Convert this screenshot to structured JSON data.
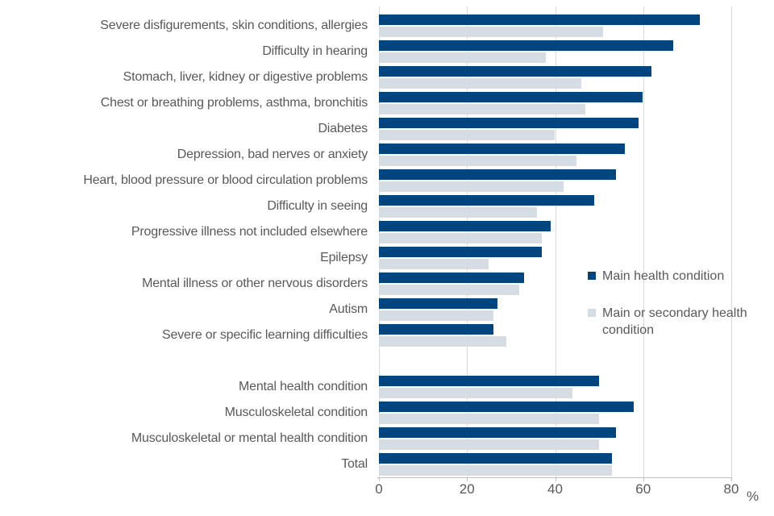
{
  "colors": {
    "series_main": "#00457d",
    "series_secondary": "#d6dce4",
    "gridline": "#d9d9d9",
    "axis_line": "#bfbfbf",
    "text": "#595959",
    "background": "#ffffff"
  },
  "chart_data": {
    "type": "bar",
    "orientation": "horizontal",
    "title": "",
    "xlabel": "%",
    "ylabel": "",
    "xlim": [
      0,
      80
    ],
    "x_ticks": [
      0,
      20,
      40,
      60,
      80
    ],
    "grid": "vertical",
    "legend_position": "right-middle",
    "unit_label": "%",
    "series": [
      {
        "name": "Main health condition",
        "color": "#00457d"
      },
      {
        "name": "Main or secondary health condition",
        "color": "#d6dce4"
      }
    ],
    "rows": [
      {
        "label": "Severe disfigurements, skin conditions, allergies",
        "main": 73,
        "secondary": 51
      },
      {
        "label": "Difficulty in hearing",
        "main": 67,
        "secondary": 38
      },
      {
        "label": "Stomach, liver, kidney or digestive problems",
        "main": 62,
        "secondary": 46
      },
      {
        "label": "Chest or breathing problems, asthma, bronchitis",
        "main": 60,
        "secondary": 47
      },
      {
        "label": "Diabetes",
        "main": 59,
        "secondary": 40
      },
      {
        "label": "Depression, bad nerves or anxiety",
        "main": 56,
        "secondary": 45
      },
      {
        "label": "Heart, blood pressure or blood circulation problems",
        "main": 54,
        "secondary": 42
      },
      {
        "label": "Difficulty in seeing",
        "main": 49,
        "secondary": 36
      },
      {
        "label": "Progressive illness not included elsewhere",
        "main": 39,
        "secondary": 37
      },
      {
        "label": "Epilepsy",
        "main": 37,
        "secondary": 25
      },
      {
        "label": "Mental illness or other nervous disorders",
        "main": 33,
        "secondary": 32
      },
      {
        "label": "Autism",
        "main": 27,
        "secondary": 26
      },
      {
        "label": "Severe or specific learning difficulties",
        "main": 26,
        "secondary": 29
      },
      {
        "label": "Mental health condition",
        "main": 50,
        "secondary": 44,
        "gap_before": true
      },
      {
        "label": "Musculoskeletal condition",
        "main": 58,
        "secondary": 50
      },
      {
        "label": "Musculoskeletal or mental health condition",
        "main": 54,
        "secondary": 50
      },
      {
        "label": "Total",
        "main": 53,
        "secondary": 53
      }
    ]
  }
}
